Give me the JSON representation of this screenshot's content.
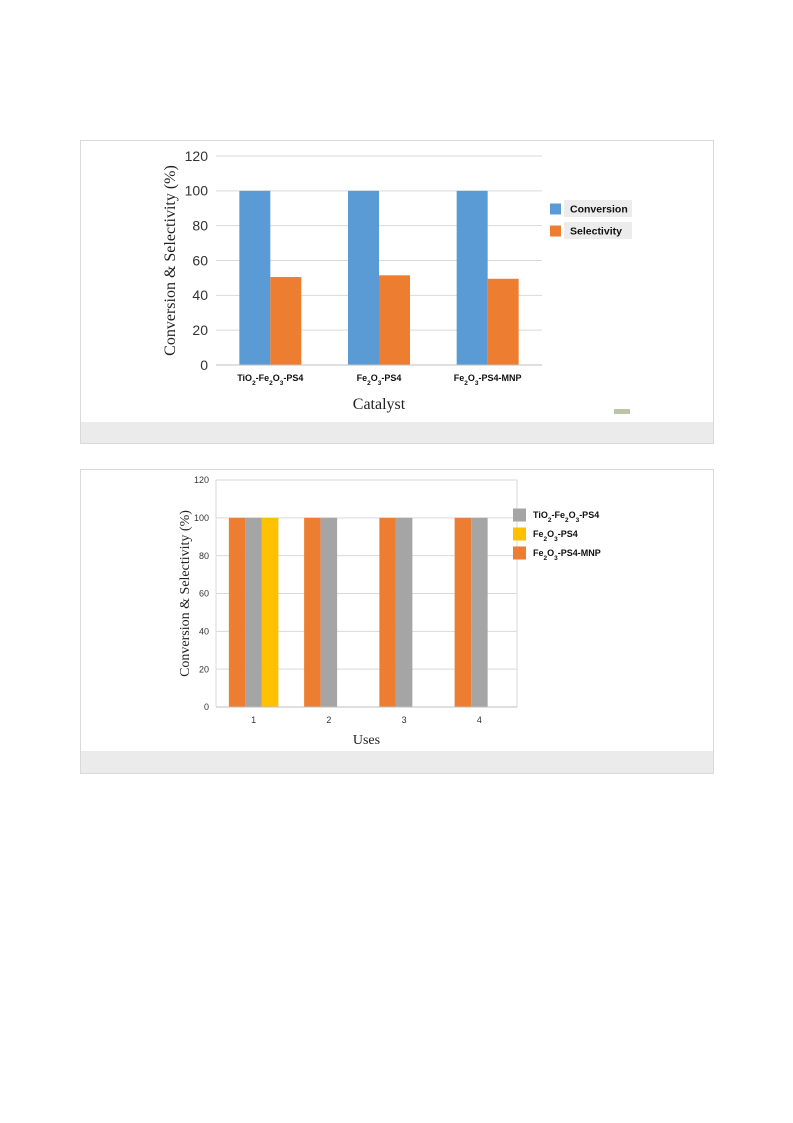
{
  "chart_data": [
    {
      "type": "bar",
      "title": "",
      "xlabel": "Catalyst",
      "ylabel": "Conversion & Selectivity (%)",
      "ylim": [
        0,
        120
      ],
      "yticks": [
        "0",
        "20",
        "40",
        "60",
        "80",
        "100",
        "120"
      ],
      "grid": true,
      "legend": "right",
      "categories": [
        {
          "main": "TiO",
          "parts": [
            {
              "t": "TiO"
            },
            {
              "t": "2",
              "sub": true
            },
            {
              "t": "-Fe"
            },
            {
              "t": "2",
              "sub": true
            },
            {
              "t": "O"
            },
            {
              "t": "3",
              "sub": true
            },
            {
              "t": "-PS4"
            }
          ]
        },
        {
          "main": "Fe",
          "parts": [
            {
              "t": "Fe"
            },
            {
              "t": "2",
              "sub": true
            },
            {
              "t": "O"
            },
            {
              "t": "3",
              "sub": true
            },
            {
              "t": "-PS4"
            }
          ]
        },
        {
          "main": "Fe",
          "parts": [
            {
              "t": "Fe"
            },
            {
              "t": "2",
              "sub": true
            },
            {
              "t": "O"
            },
            {
              "t": "3",
              "sub": true
            },
            {
              "t": "-PS4-MNP"
            }
          ]
        }
      ],
      "series": [
        {
          "name": "Conversion",
          "color": "#5b9bd5",
          "values": [
            100,
            100,
            100
          ]
        },
        {
          "name": "Selectivity",
          "color": "#ed7d31",
          "values": [
            50.5,
            51.5,
            49.5
          ]
        }
      ]
    },
    {
      "type": "bar",
      "title": "",
      "xlabel": "Uses",
      "ylabel": "Conversion & Selectivity (%)",
      "ylim": [
        0,
        120
      ],
      "yticks": [
        "0",
        "20",
        "40",
        "60",
        "80",
        "100",
        "120"
      ],
      "grid": true,
      "legend": "right",
      "categories": [
        "1",
        "2",
        "3",
        "4"
      ],
      "series": [
        {
          "name": "Fe2O3-PS4-MNP",
          "parts": [
            {
              "t": "Fe"
            },
            {
              "t": "2",
              "sub": true
            },
            {
              "t": "O"
            },
            {
              "t": "3",
              "sub": true
            },
            {
              "t": "-PS4-MNP"
            }
          ],
          "color": "#ed7d31",
          "values": [
            100,
            100,
            100,
            100
          ]
        },
        {
          "name": "TiO2-Fe2O3-PS4",
          "parts": [
            {
              "t": "TiO"
            },
            {
              "t": "2",
              "sub": true
            },
            {
              "t": "-Fe"
            },
            {
              "t": "2",
              "sub": true
            },
            {
              "t": "O"
            },
            {
              "t": "3",
              "sub": true
            },
            {
              "t": "-PS4"
            }
          ],
          "color": "#a5a5a5",
          "values": [
            100,
            100,
            100,
            100
          ]
        },
        {
          "name": "Fe2O3-PS4",
          "parts": [
            {
              "t": "Fe"
            },
            {
              "t": "2",
              "sub": true
            },
            {
              "t": "O"
            },
            {
              "t": "3",
              "sub": true
            },
            {
              "t": "-PS4"
            }
          ],
          "color": "#ffc000",
          "values": [
            100,
            null,
            null,
            null
          ]
        }
      ],
      "legend_order": [
        1,
        2,
        0
      ]
    }
  ]
}
